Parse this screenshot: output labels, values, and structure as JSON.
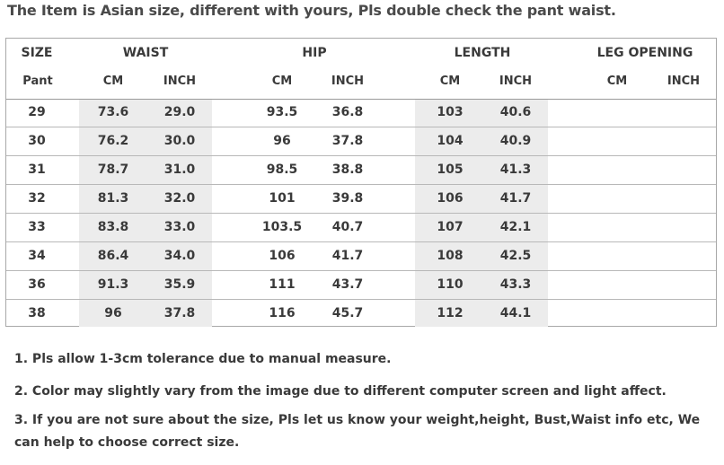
{
  "title": "The Item is Asian size, different with yours, Pls double check the pant waist.",
  "table": {
    "header_top": [
      "SIZE",
      "WAIST",
      "HIP",
      "LENGTH",
      "LEG OPENING"
    ],
    "header_sub": [
      "Pant",
      "CM",
      "INCH",
      "CM",
      "INCH",
      "CM",
      "INCH",
      "CM",
      "INCH"
    ],
    "rows": [
      [
        "29",
        "73.6",
        "29.0",
        "93.5",
        "36.8",
        "103",
        "40.6",
        "",
        ""
      ],
      [
        "30",
        "76.2",
        "30.0",
        "96",
        "37.8",
        "104",
        "40.9",
        "",
        ""
      ],
      [
        "31",
        "78.7",
        "31.0",
        "98.5",
        "38.8",
        "105",
        "41.3",
        "",
        ""
      ],
      [
        "32",
        "81.3",
        "32.0",
        "101",
        "39.8",
        "106",
        "41.7",
        "",
        ""
      ],
      [
        "33",
        "83.8",
        "33.0",
        "103.5",
        "40.7",
        "107",
        "42.1",
        "",
        ""
      ],
      [
        "34",
        "86.4",
        "34.0",
        "106",
        "41.7",
        "108",
        "42.5",
        "",
        ""
      ],
      [
        "36",
        "91.3",
        "35.9",
        "111",
        "43.7",
        "110",
        "43.3",
        "",
        ""
      ],
      [
        "38",
        "96",
        "37.8",
        "116",
        "45.7",
        "112",
        "44.1",
        "",
        ""
      ]
    ]
  },
  "notes": [
    "1.  Pls allow 1-3cm tolerance due to manual measure.",
    "2.  Color may slightly vary from the image due to different computer screen and light affect.",
    "3.  If you are not sure about the size, Pls let us know your weight,height, Bust,Waist info etc, We can help to choose correct size."
  ]
}
